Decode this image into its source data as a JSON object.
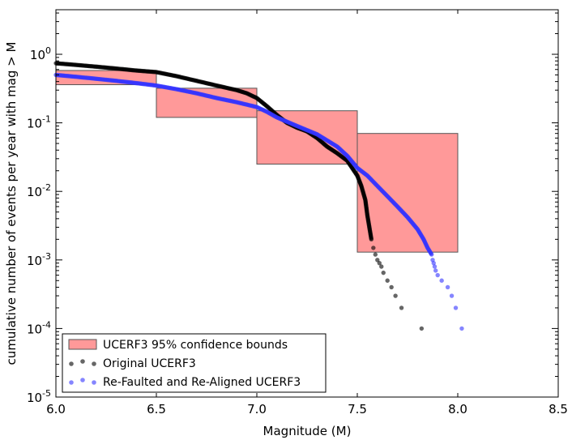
{
  "chart_data": {
    "type": "scatter",
    "xlabel": "Magnitude (M)",
    "ylabel": "cumulative number of events per year with mag > M",
    "xlim": [
      6.0,
      8.5
    ],
    "ylim_log10": [
      -5,
      0.65
    ],
    "yscale": "log",
    "grid": false,
    "legend_position": "lower-left",
    "x_ticks": [
      {
        "value": 6.0,
        "label": "6.0"
      },
      {
        "value": 6.5,
        "label": "6.5"
      },
      {
        "value": 7.0,
        "label": "7.0"
      },
      {
        "value": 7.5,
        "label": "7.5"
      },
      {
        "value": 8.0,
        "label": "8.0"
      },
      {
        "value": 8.5,
        "label": "8.5"
      }
    ],
    "y_ticks": [
      {
        "exp": 0,
        "base": "10",
        "power": "0"
      },
      {
        "exp": -1,
        "base": "10",
        "power": "-1"
      },
      {
        "exp": -2,
        "base": "10",
        "power": "-2"
      },
      {
        "exp": -3,
        "base": "10",
        "power": "-3"
      },
      {
        "exp": -4,
        "base": "10",
        "power": "-4"
      },
      {
        "exp": -5,
        "base": "10",
        "power": "-5"
      }
    ],
    "bounds": {
      "name": "UCERF3 95% confidence bounds",
      "color": "#ff9999",
      "edge_color": "#555555",
      "boxes": [
        {
          "x0": 6.0,
          "x1": 6.5,
          "low": 0.36,
          "high": 0.58
        },
        {
          "x0": 6.5,
          "x1": 7.0,
          "low": 0.12,
          "high": 0.32
        },
        {
          "x0": 7.0,
          "x1": 7.5,
          "low": 0.025,
          "high": 0.15
        },
        {
          "x0": 7.5,
          "x1": 8.0,
          "low": 0.0013,
          "high": 0.07
        }
      ]
    },
    "series": [
      {
        "name": "Original UCERF3",
        "color": "#000000",
        "dense_curve": [
          [
            6.0,
            0.74
          ],
          [
            6.1,
            0.7
          ],
          [
            6.2,
            0.66
          ],
          [
            6.3,
            0.62
          ],
          [
            6.4,
            0.58
          ],
          [
            6.5,
            0.55
          ],
          [
            6.6,
            0.48
          ],
          [
            6.7,
            0.41
          ],
          [
            6.8,
            0.35
          ],
          [
            6.9,
            0.3
          ],
          [
            6.95,
            0.27
          ],
          [
            7.0,
            0.23
          ],
          [
            7.05,
            0.175
          ],
          [
            7.1,
            0.13
          ],
          [
            7.15,
            0.1
          ],
          [
            7.2,
            0.085
          ],
          [
            7.25,
            0.075
          ],
          [
            7.3,
            0.06
          ],
          [
            7.35,
            0.045
          ],
          [
            7.4,
            0.036
          ],
          [
            7.45,
            0.028
          ],
          [
            7.5,
            0.017
          ],
          [
            7.52,
            0.012
          ],
          [
            7.54,
            0.0075
          ],
          [
            7.55,
            0.0045
          ],
          [
            7.56,
            0.003
          ],
          [
            7.57,
            0.002
          ]
        ],
        "sparse_points": [
          [
            7.58,
            0.0015
          ],
          [
            7.59,
            0.0012
          ],
          [
            7.6,
            0.001
          ],
          [
            7.61,
            0.0009
          ],
          [
            7.62,
            0.0008
          ],
          [
            7.63,
            0.00065
          ],
          [
            7.65,
            0.0005
          ],
          [
            7.67,
            0.0004
          ],
          [
            7.69,
            0.0003
          ],
          [
            7.72,
            0.0002
          ],
          [
            7.82,
            0.0001
          ]
        ]
      },
      {
        "name": "Re-Faulted and Re-Aligned UCERF3",
        "color": "#3333ff",
        "dense_curve": [
          [
            6.0,
            0.5
          ],
          [
            6.1,
            0.47
          ],
          [
            6.2,
            0.44
          ],
          [
            6.3,
            0.41
          ],
          [
            6.4,
            0.38
          ],
          [
            6.5,
            0.35
          ],
          [
            6.6,
            0.31
          ],
          [
            6.7,
            0.27
          ],
          [
            6.8,
            0.23
          ],
          [
            6.9,
            0.2
          ],
          [
            7.0,
            0.17
          ],
          [
            7.05,
            0.145
          ],
          [
            7.1,
            0.12
          ],
          [
            7.2,
            0.09
          ],
          [
            7.3,
            0.068
          ],
          [
            7.4,
            0.045
          ],
          [
            7.45,
            0.033
          ],
          [
            7.5,
            0.022
          ],
          [
            7.55,
            0.017
          ],
          [
            7.6,
            0.012
          ],
          [
            7.65,
            0.0085
          ],
          [
            7.7,
            0.006
          ],
          [
            7.75,
            0.0042
          ],
          [
            7.8,
            0.0028
          ],
          [
            7.83,
            0.002
          ],
          [
            7.85,
            0.0015
          ],
          [
            7.87,
            0.0012
          ]
        ],
        "sparse_points": [
          [
            7.875,
            0.001
          ],
          [
            7.88,
            0.0009
          ],
          [
            7.885,
            0.0008
          ],
          [
            7.89,
            0.0007
          ],
          [
            7.9,
            0.0006
          ],
          [
            7.92,
            0.0005
          ],
          [
            7.95,
            0.0004
          ],
          [
            7.97,
            0.0003
          ],
          [
            7.99,
            0.0002
          ],
          [
            8.02,
            0.0001
          ]
        ]
      }
    ],
    "legend": [
      {
        "label": "UCERF3 95% confidence bounds",
        "kind": "patch"
      },
      {
        "label": "Original UCERF3",
        "kind": "points",
        "color": "#000000"
      },
      {
        "label": "Re-Faulted and Re-Aligned UCERF3",
        "kind": "points",
        "color": "#3333ff"
      }
    ]
  }
}
